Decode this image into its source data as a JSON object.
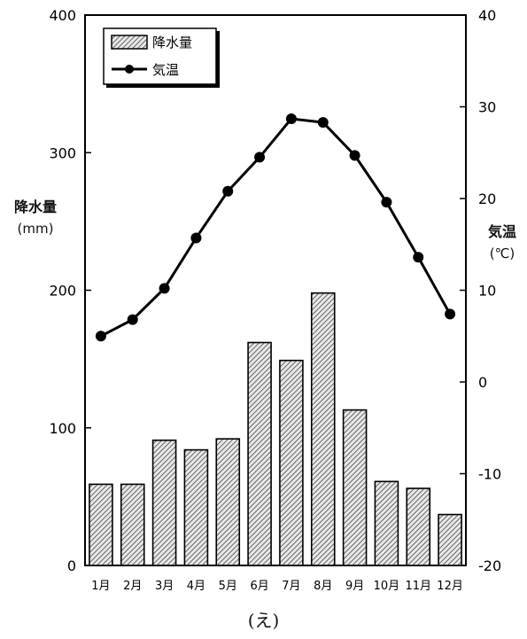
{
  "chart_data": {
    "type": "bar+line",
    "categories": [
      "1月",
      "2月",
      "3月",
      "4月",
      "5月",
      "6月",
      "7月",
      "8月",
      "9月",
      "10月",
      "11月",
      "12月"
    ],
    "series": [
      {
        "name": "降水量",
        "kind": "bar",
        "axis": "left",
        "values": [
          59,
          59,
          91,
          84,
          92,
          162,
          149,
          198,
          113,
          61,
          56,
          37
        ]
      },
      {
        "name": "気温",
        "kind": "line",
        "axis": "right",
        "values": [
          5.0,
          6.8,
          10.2,
          15.7,
          20.8,
          24.5,
          28.7,
          28.3,
          24.7,
          19.6,
          13.6,
          7.4
        ]
      }
    ],
    "y_left": {
      "label": "降水量",
      "unit": "(mm)",
      "min": 0,
      "max": 400,
      "ticks": [
        "0",
        "100",
        "200",
        "300",
        "400"
      ]
    },
    "y_right": {
      "label": "気温",
      "unit": "(℃)",
      "min": -20,
      "max": 40,
      "ticks": [
        "-20",
        "-10",
        "0",
        "10",
        "20",
        "30",
        "40"
      ]
    },
    "legend": {
      "position": "top-left",
      "bar_label": "降水量",
      "line_label": "気温"
    },
    "grid": false
  },
  "caption": "(え)"
}
